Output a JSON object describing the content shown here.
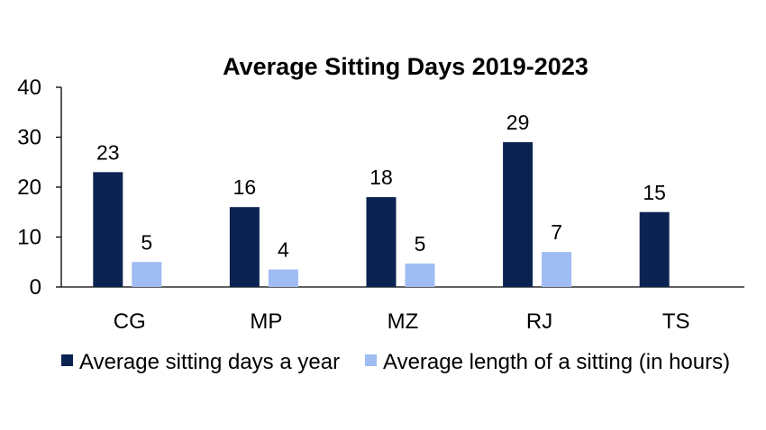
{
  "chart_data": {
    "type": "bar",
    "title": "Average Sitting Days 2019-2023",
    "categories": [
      "CG",
      "MP",
      "MZ",
      "RJ",
      "TS"
    ],
    "series": [
      {
        "name": "Average sitting days a year",
        "color": "#0b2350",
        "values": [
          23,
          16,
          18,
          29,
          15
        ],
        "labels": [
          "23",
          "16",
          "18",
          "29",
          "15"
        ]
      },
      {
        "name": "Average length of a sitting (in hours)",
        "color": "#9fbcf3",
        "values": [
          5,
          3.5,
          4.7,
          7,
          null
        ],
        "labels": [
          "5",
          "4",
          "5",
          "7",
          ""
        ]
      }
    ],
    "ylim": [
      0,
      40
    ],
    "yticks": [
      "0",
      "10",
      "20",
      "30",
      "40"
    ],
    "ytick_values": [
      0,
      10,
      20,
      30,
      40
    ],
    "xlabel": "",
    "ylabel": "",
    "grid": false,
    "legend_position": "bottom"
  }
}
